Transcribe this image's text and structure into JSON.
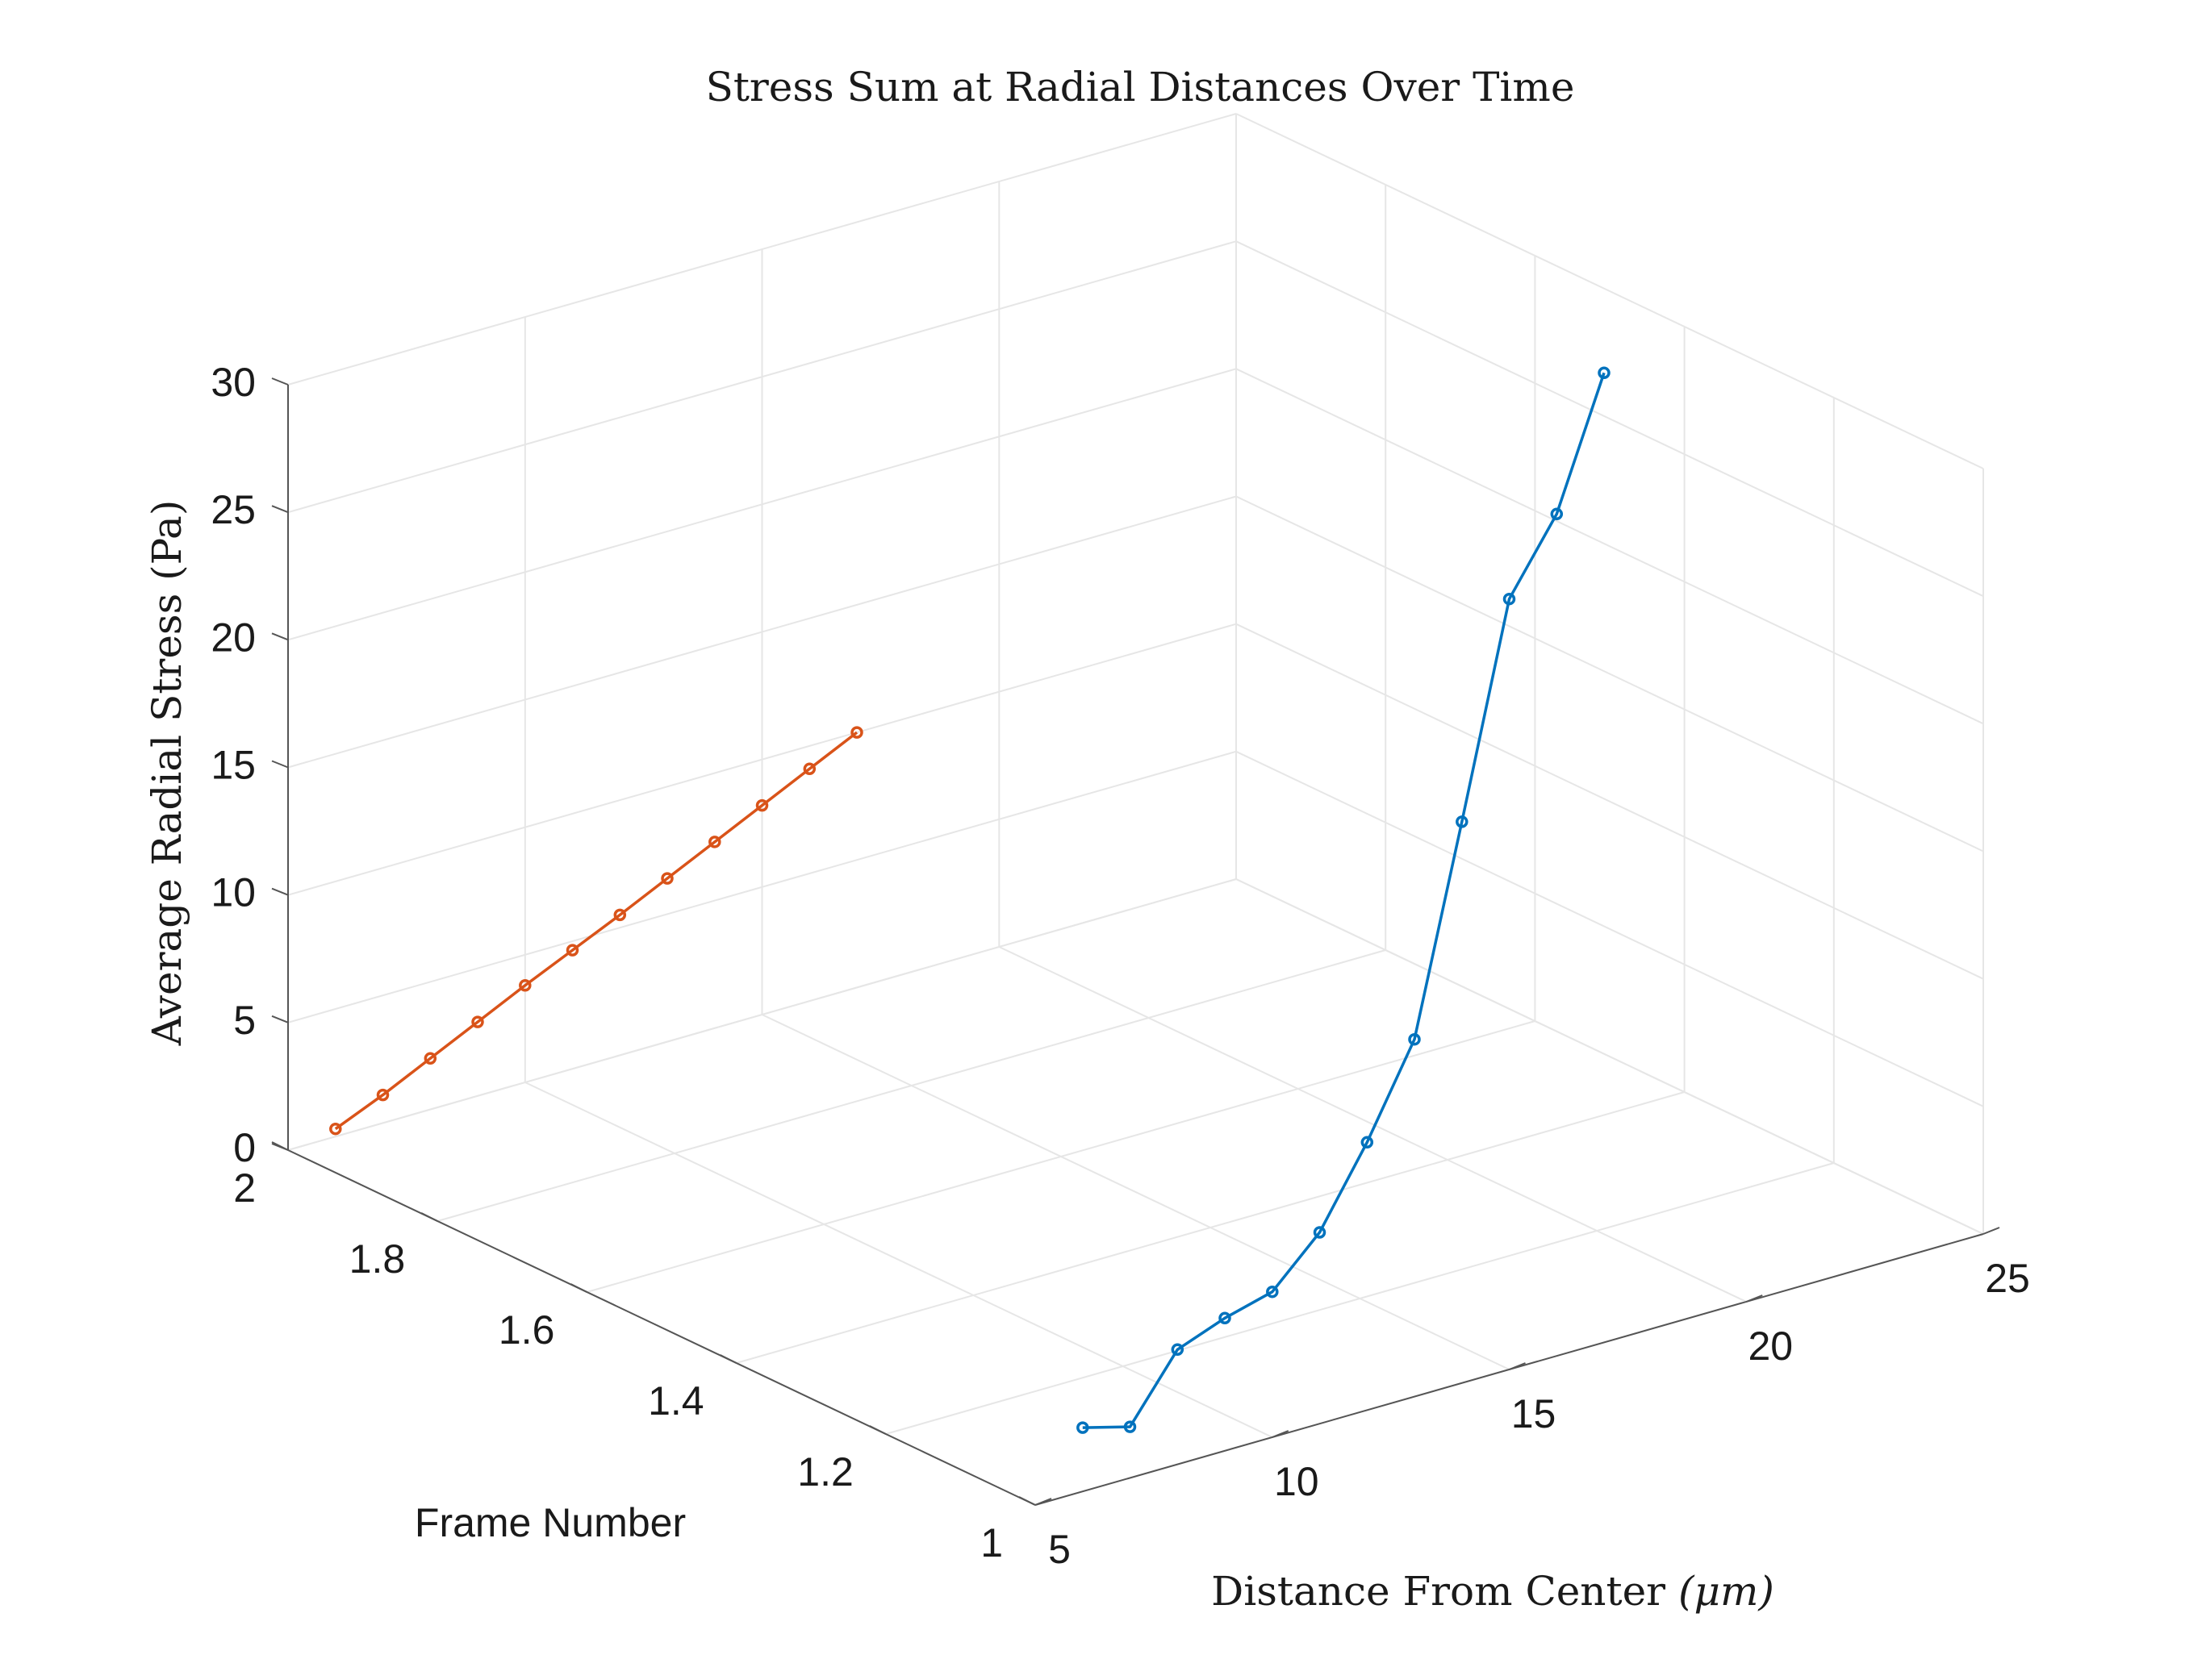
{
  "chart_data": {
    "type": "line",
    "projection": "3d",
    "title": "Stress Sum at Radial Distances Over Time",
    "xlabel": "Distance From Center (μm)",
    "xlabel_main": "Distance From Center ",
    "xlabel_unit": "(μm)",
    "ylabel": "Frame Number",
    "zlabel": "Average Radial Stress (Pa)",
    "xlim": [
      5,
      25
    ],
    "ylim": [
      1,
      2
    ],
    "zlim": [
      0,
      30
    ],
    "xticks": [
      5,
      10,
      15,
      20,
      25
    ],
    "yticks": [
      1,
      1.2,
      1.4,
      1.6,
      1.8,
      2
    ],
    "zticks": [
      0,
      5,
      10,
      15,
      20,
      25,
      30
    ],
    "xtick_labels": [
      "5",
      "10",
      "15",
      "20",
      "25"
    ],
    "ytick_labels": [
      "1",
      "1.2",
      "1.4",
      "1.6",
      "1.8",
      "2"
    ],
    "ztick_labels": [
      "0",
      "5",
      "10",
      "15",
      "20",
      "25",
      "30"
    ],
    "grid": true,
    "series": [
      {
        "color": "#0072BD",
        "y": 1,
        "x": [
          6,
          7,
          8,
          9,
          10,
          11,
          12,
          13,
          14,
          15,
          16,
          17
        ],
        "z": [
          2.5,
          2.0,
          4.5,
          5.2,
          5.7,
          7.5,
          10.5,
          14.0,
          22.0,
          30.2,
          33.0,
          38.0
        ]
      },
      {
        "color": "#D95319",
        "y": 2,
        "x": [
          6,
          7,
          8,
          9,
          10,
          11,
          12,
          13,
          14,
          15,
          16,
          17
        ],
        "z": [
          0.3,
          1.1,
          2.0,
          2.9,
          3.8,
          4.65,
          5.5,
          6.4,
          7.3,
          8.2,
          9.1,
          10.0
        ]
      }
    ]
  }
}
